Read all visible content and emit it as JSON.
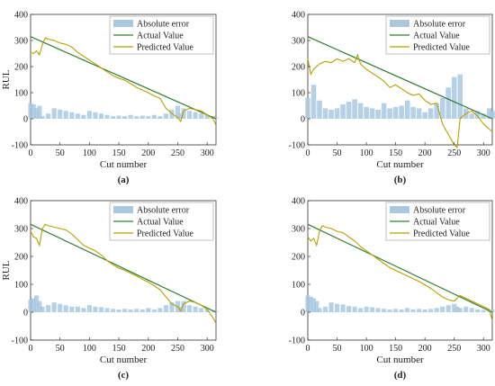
{
  "colors": {
    "error_fill": "#a9c8e0",
    "actual_line": "#2e7d32",
    "predicted_line": "#b5a000",
    "axis": "#333333"
  },
  "chart_data": [
    {
      "type": "line",
      "panel_label": "(a)",
      "xlabel": "Cut number",
      "ylabel": "RUL",
      "xlim": [
        0,
        315
      ],
      "ylim": [
        -100,
        400
      ],
      "xticks": [
        0,
        50,
        100,
        150,
        200,
        250,
        300
      ],
      "yticks": [
        -100,
        0,
        100,
        200,
        300,
        400
      ],
      "legend_position": "top-right",
      "series": [
        {
          "name": "Absolute error",
          "kind": "area",
          "x": [
            0,
            5,
            10,
            15,
            20,
            30,
            40,
            50,
            60,
            70,
            80,
            90,
            100,
            110,
            120,
            130,
            140,
            150,
            160,
            170,
            180,
            190,
            200,
            210,
            220,
            230,
            240,
            250,
            255,
            260,
            270,
            280,
            290,
            300,
            310,
            315
          ],
          "y": [
            60,
            55,
            40,
            50,
            10,
            20,
            40,
            35,
            30,
            25,
            20,
            15,
            30,
            25,
            20,
            15,
            10,
            12,
            10,
            15,
            10,
            12,
            10,
            15,
            10,
            20,
            35,
            50,
            20,
            40,
            30,
            25,
            20,
            15,
            10,
            5
          ]
        },
        {
          "name": "Actual Value",
          "kind": "line",
          "x": [
            0,
            315
          ],
          "y": [
            315,
            0
          ]
        },
        {
          "name": "Predicted Value",
          "kind": "line",
          "x": [
            0,
            5,
            10,
            15,
            20,
            25,
            30,
            40,
            50,
            60,
            70,
            80,
            90,
            100,
            110,
            120,
            130,
            140,
            150,
            160,
            170,
            180,
            190,
            200,
            210,
            220,
            230,
            240,
            250,
            255,
            260,
            270,
            280,
            290,
            300,
            310,
            315
          ],
          "y": [
            255,
            250,
            260,
            245,
            285,
            310,
            305,
            300,
            290,
            285,
            275,
            255,
            240,
            225,
            210,
            195,
            180,
            165,
            155,
            148,
            135,
            120,
            110,
            100,
            88,
            78,
            40,
            20,
            5,
            -10,
            30,
            40,
            35,
            30,
            15,
            0,
            -25
          ]
        }
      ]
    },
    {
      "type": "line",
      "panel_label": "(b)",
      "xlabel": "Cut number",
      "ylabel": "",
      "xlim": [
        0,
        315
      ],
      "ylim": [
        -100,
        400
      ],
      "xticks": [
        0,
        50,
        100,
        150,
        200,
        250,
        300
      ],
      "yticks": [
        -100,
        0,
        100,
        200,
        300,
        400
      ],
      "legend_position": "top-right",
      "series": [
        {
          "name": "Absolute error",
          "kind": "area",
          "x": [
            0,
            10,
            20,
            30,
            40,
            50,
            60,
            70,
            80,
            90,
            100,
            110,
            120,
            130,
            140,
            150,
            160,
            170,
            180,
            190,
            200,
            210,
            220,
            230,
            240,
            250,
            260,
            270,
            280,
            290,
            300,
            310,
            315
          ],
          "y": [
            80,
            130,
            70,
            40,
            35,
            40,
            55,
            65,
            75,
            60,
            45,
            40,
            35,
            60,
            40,
            45,
            50,
            70,
            45,
            40,
            25,
            40,
            60,
            80,
            120,
            160,
            170,
            40,
            20,
            30,
            20,
            40,
            30
          ]
        },
        {
          "name": "Actual Value",
          "kind": "line",
          "x": [
            0,
            315
          ],
          "y": [
            315,
            0
          ]
        },
        {
          "name": "Predicted Value",
          "kind": "line",
          "x": [
            0,
            5,
            10,
            20,
            30,
            40,
            50,
            60,
            70,
            80,
            85,
            90,
            100,
            110,
            120,
            130,
            140,
            150,
            160,
            170,
            180,
            190,
            200,
            210,
            220,
            225,
            230,
            240,
            250,
            255,
            260,
            270,
            280,
            290,
            300,
            310,
            315
          ],
          "y": [
            230,
            170,
            190,
            210,
            220,
            215,
            230,
            220,
            230,
            215,
            245,
            210,
            190,
            175,
            160,
            145,
            120,
            130,
            115,
            100,
            90,
            95,
            70,
            55,
            60,
            20,
            -20,
            -60,
            -100,
            -110,
            0,
            20,
            30,
            10,
            -20,
            -40,
            -50
          ]
        }
      ]
    },
    {
      "type": "line",
      "panel_label": "(c)",
      "xlabel": "Cut number",
      "ylabel": "RUL",
      "xlim": [
        0,
        315
      ],
      "ylim": [
        -100,
        400
      ],
      "xticks": [
        0,
        50,
        100,
        150,
        200,
        250,
        300
      ],
      "yticks": [
        -100,
        0,
        100,
        200,
        300,
        400
      ],
      "legend_position": "top-right",
      "series": [
        {
          "name": "Absolute error",
          "kind": "area",
          "x": [
            0,
            5,
            10,
            15,
            20,
            30,
            40,
            50,
            60,
            70,
            80,
            90,
            100,
            110,
            120,
            130,
            140,
            150,
            160,
            170,
            180,
            190,
            200,
            210,
            220,
            230,
            240,
            250,
            255,
            260,
            270,
            280,
            290,
            300,
            310,
            315
          ],
          "y": [
            45,
            50,
            60,
            40,
            20,
            25,
            35,
            30,
            25,
            20,
            20,
            15,
            25,
            20,
            18,
            15,
            12,
            10,
            12,
            10,
            12,
            10,
            15,
            10,
            15,
            25,
            35,
            40,
            20,
            40,
            25,
            20,
            15,
            10,
            8,
            5
          ]
        },
        {
          "name": "Actual Value",
          "kind": "line",
          "x": [
            0,
            315
          ],
          "y": [
            315,
            0
          ]
        },
        {
          "name": "Predicted Value",
          "kind": "line",
          "x": [
            0,
            5,
            10,
            15,
            20,
            25,
            30,
            40,
            50,
            60,
            70,
            80,
            90,
            100,
            110,
            120,
            130,
            140,
            150,
            160,
            170,
            180,
            190,
            200,
            210,
            220,
            230,
            240,
            250,
            255,
            260,
            270,
            280,
            290,
            300,
            310,
            315
          ],
          "y": [
            290,
            270,
            265,
            240,
            300,
            315,
            310,
            305,
            300,
            295,
            280,
            260,
            240,
            230,
            220,
            205,
            185,
            170,
            158,
            150,
            140,
            130,
            118,
            108,
            95,
            80,
            55,
            30,
            20,
            5,
            30,
            40,
            35,
            25,
            10,
            -20,
            -40
          ]
        }
      ]
    },
    {
      "type": "line",
      "panel_label": "(d)",
      "xlabel": "Cut number",
      "ylabel": "",
      "xlim": [
        0,
        315
      ],
      "ylim": [
        -100,
        400
      ],
      "xticks": [
        0,
        50,
        100,
        150,
        200,
        250,
        300
      ],
      "yticks": [
        -100,
        0,
        100,
        200,
        300,
        400
      ],
      "legend_position": "top-right",
      "series": [
        {
          "name": "Absolute error",
          "kind": "area",
          "x": [
            0,
            5,
            10,
            15,
            20,
            30,
            40,
            50,
            60,
            70,
            80,
            90,
            100,
            110,
            120,
            130,
            140,
            150,
            160,
            170,
            180,
            190,
            200,
            210,
            220,
            230,
            240,
            250,
            255,
            260,
            270,
            280,
            290,
            300,
            310,
            315
          ],
          "y": [
            60,
            55,
            50,
            40,
            15,
            20,
            35,
            30,
            28,
            22,
            20,
            15,
            20,
            18,
            15,
            12,
            10,
            12,
            10,
            15,
            10,
            12,
            10,
            12,
            15,
            20,
            25,
            30,
            20,
            15,
            20,
            15,
            10,
            8,
            6,
            10
          ]
        },
        {
          "name": "Actual Value",
          "kind": "line",
          "x": [
            0,
            315
          ],
          "y": [
            315,
            0
          ]
        },
        {
          "name": "Predicted Value",
          "kind": "line",
          "x": [
            0,
            5,
            10,
            15,
            20,
            25,
            30,
            40,
            50,
            60,
            70,
            80,
            90,
            100,
            110,
            120,
            130,
            140,
            150,
            160,
            170,
            180,
            190,
            200,
            210,
            220,
            230,
            240,
            250,
            260,
            270,
            280,
            290,
            300,
            310,
            315
          ],
          "y": [
            270,
            255,
            265,
            240,
            290,
            310,
            305,
            300,
            290,
            285,
            270,
            255,
            235,
            220,
            205,
            190,
            175,
            160,
            150,
            140,
            130,
            120,
            110,
            98,
            85,
            70,
            55,
            45,
            40,
            60,
            50,
            40,
            30,
            20,
            10,
            -30
          ]
        }
      ]
    }
  ]
}
